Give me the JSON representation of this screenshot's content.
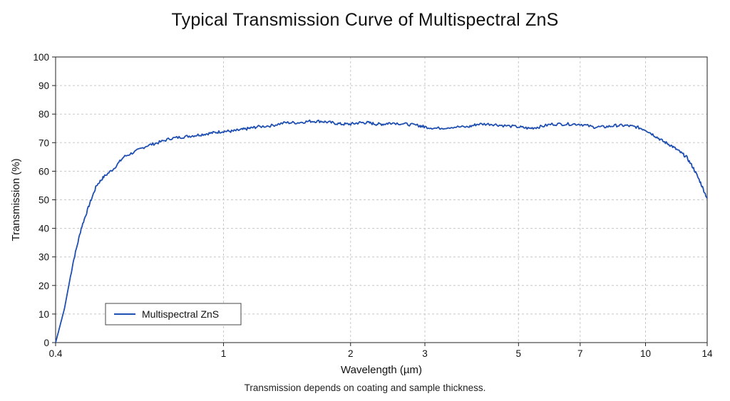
{
  "chart_data": {
    "type": "line",
    "title": "Typical Transmission Curve of Multispectral ZnS",
    "xlabel": "Wavelength (µm)",
    "ylabel": "Transmission (%)",
    "caption": "Transmission depends on coating and sample thickness.",
    "x_scale": "log",
    "xlim": [
      0.4,
      14
    ],
    "ylim": [
      0,
      100
    ],
    "grid": true,
    "legend_position": "lower-left",
    "x_ticks": [
      0.4,
      1,
      2,
      3,
      5,
      7,
      10,
      14
    ],
    "x_tick_labels": [
      "0.4",
      "1",
      "2",
      "3",
      "5",
      "7",
      "10",
      "14"
    ],
    "y_ticks": [
      0,
      10,
      20,
      30,
      40,
      50,
      60,
      70,
      80,
      90,
      100
    ],
    "y_tick_labels": [
      "0",
      "10",
      "20",
      "30",
      "40",
      "50",
      "60",
      "70",
      "80",
      "90",
      "100"
    ],
    "series": [
      {
        "name": "Multispectral ZnS",
        "color": "#1f4fb0",
        "x": [
          0.4,
          0.42,
          0.44,
          0.46,
          0.48,
          0.5,
          0.52,
          0.55,
          0.58,
          0.62,
          0.66,
          0.7,
          0.75,
          0.8,
          0.85,
          0.9,
          0.95,
          1.0,
          1.05,
          1.1,
          1.15,
          1.2,
          1.3,
          1.4,
          1.5,
          1.6,
          1.7,
          1.8,
          1.9,
          2.0,
          2.1,
          2.2,
          2.3,
          2.4,
          2.5,
          2.7,
          2.9,
          3.0,
          3.2,
          3.5,
          3.8,
          4.0,
          4.3,
          4.6,
          5.0,
          5.3,
          5.6,
          6.0,
          6.5,
          7.0,
          7.5,
          8.0,
          8.5,
          9.0,
          9.5,
          10.0,
          10.5,
          11.0,
          11.5,
          12.0,
          12.5,
          13.0,
          13.5,
          14.0
        ],
        "y": [
          0,
          12,
          28,
          40,
          48,
          55,
          58,
          61,
          65,
          67,
          69,
          70,
          71.5,
          72,
          72.5,
          73,
          73.5,
          74,
          74,
          74.5,
          75,
          75.5,
          76,
          77,
          77,
          77.5,
          77.5,
          77,
          76.5,
          76.5,
          77,
          77,
          76.5,
          76.5,
          77,
          76.5,
          76,
          75.5,
          75,
          75.5,
          75.5,
          76.5,
          76.5,
          76,
          75.5,
          75,
          75.5,
          76.5,
          76.5,
          76.5,
          75.5,
          75.5,
          76,
          76,
          75.5,
          74.5,
          72.5,
          70.5,
          69,
          67,
          65,
          61,
          56,
          50.5
        ]
      }
    ]
  }
}
